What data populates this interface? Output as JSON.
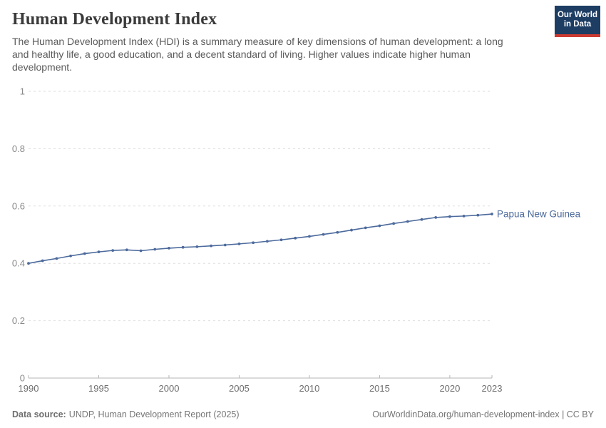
{
  "header": {
    "title": "Human Development Index",
    "subtitle_lines": [
      "The Human Development Index (HDI) is a summary measure of key dimensions of human development: a long",
      "and healthy life, a good education, and a decent standard of living. Higher values indicate higher human",
      "development."
    ],
    "logo": {
      "line1": "Our World",
      "line2": "in Data",
      "navy": "#1d3d63",
      "red": "#cc3b31"
    }
  },
  "chart_data": {
    "type": "line",
    "title": "Human Development Index",
    "entity": "Papua New Guinea",
    "xlabel": "",
    "ylabel": "",
    "xlim": [
      1990,
      2023
    ],
    "ylim": [
      0,
      1
    ],
    "grid": "horizontal-dashed",
    "legend_position": "end-of-line",
    "line_color": "#4C6A9C",
    "grid_color": "#dedede",
    "axis_color": "#b5b5b5",
    "xtick_color": "#6e6e6e",
    "ytick_color": "#8a8a8a",
    "xticks": [
      1990,
      1995,
      2000,
      2005,
      2010,
      2015,
      2020,
      2023
    ],
    "yticks": [
      0,
      0.2,
      0.4,
      0.6,
      0.8,
      1
    ],
    "ytick_labels": [
      "0",
      "0.2",
      "0.4",
      "0.6",
      "0.8",
      "1"
    ],
    "x": [
      1990,
      1991,
      1992,
      1993,
      1994,
      1995,
      1996,
      1997,
      1998,
      1999,
      2000,
      2001,
      2002,
      2003,
      2004,
      2005,
      2006,
      2007,
      2008,
      2009,
      2010,
      2011,
      2012,
      2013,
      2014,
      2015,
      2016,
      2017,
      2018,
      2019,
      2020,
      2021,
      2022,
      2023
    ],
    "values": [
      0.4,
      0.409,
      0.417,
      0.426,
      0.434,
      0.44,
      0.445,
      0.447,
      0.444,
      0.449,
      0.453,
      0.456,
      0.458,
      0.461,
      0.464,
      0.468,
      0.472,
      0.477,
      0.482,
      0.488,
      0.494,
      0.501,
      0.508,
      0.516,
      0.524,
      0.531,
      0.539,
      0.546,
      0.553,
      0.56,
      0.563,
      0.565,
      0.568,
      0.572
    ]
  },
  "footer": {
    "source_label": "Data source:",
    "source_text": "UNDP, Human Development Report (2025)",
    "link_text": "OurWorldinData.org/human-development-index | CC BY"
  }
}
